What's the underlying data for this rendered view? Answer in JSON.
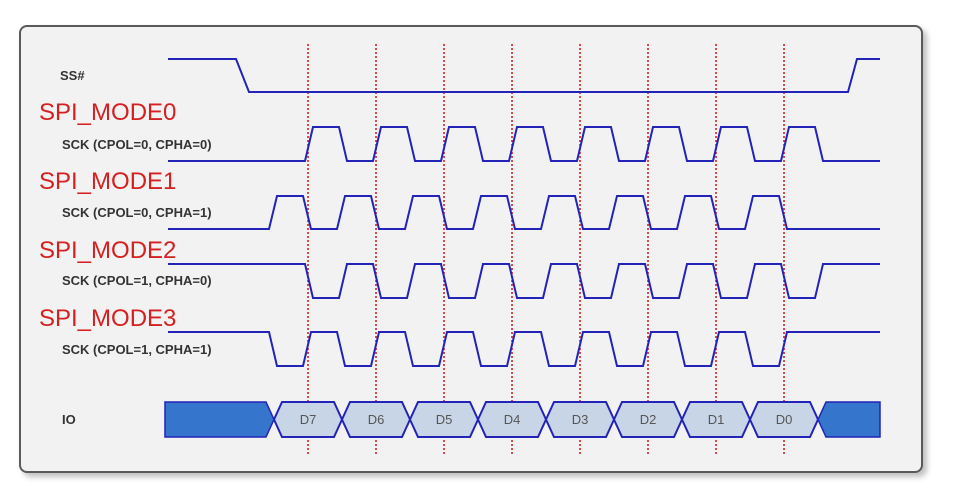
{
  "colors": {
    "wave": "#2323b8",
    "marker": "#d42020",
    "mode_label": "#d42020",
    "io_idle_fill": "#3575cc",
    "io_bit_fill": "#c8d5e6",
    "background": "#f2f2f2"
  },
  "ss": {
    "label": "SS#",
    "active_level": "low"
  },
  "modes": [
    {
      "name": "SPI_MODE0",
      "label": "SCK (CPOL=0, CPHA=0)",
      "cpol": 0,
      "cpha": 0
    },
    {
      "name": "SPI_MODE1",
      "label": "SCK (CPOL=0, CPHA=1)",
      "cpol": 0,
      "cpha": 1
    },
    {
      "name": "SPI_MODE2",
      "label": "SCK (CPOL=1, CPHA=0)",
      "cpol": 1,
      "cpha": 0
    },
    {
      "name": "SPI_MODE3",
      "label": "SCK (CPOL=1, CPHA=1)",
      "cpol": 1,
      "cpha": 1
    }
  ],
  "io": {
    "label": "IO",
    "bits": [
      "D7",
      "D6",
      "D5",
      "D4",
      "D3",
      "D2",
      "D1",
      "D0"
    ]
  },
  "sample_markers": {
    "count": 8,
    "style": "dotted"
  }
}
